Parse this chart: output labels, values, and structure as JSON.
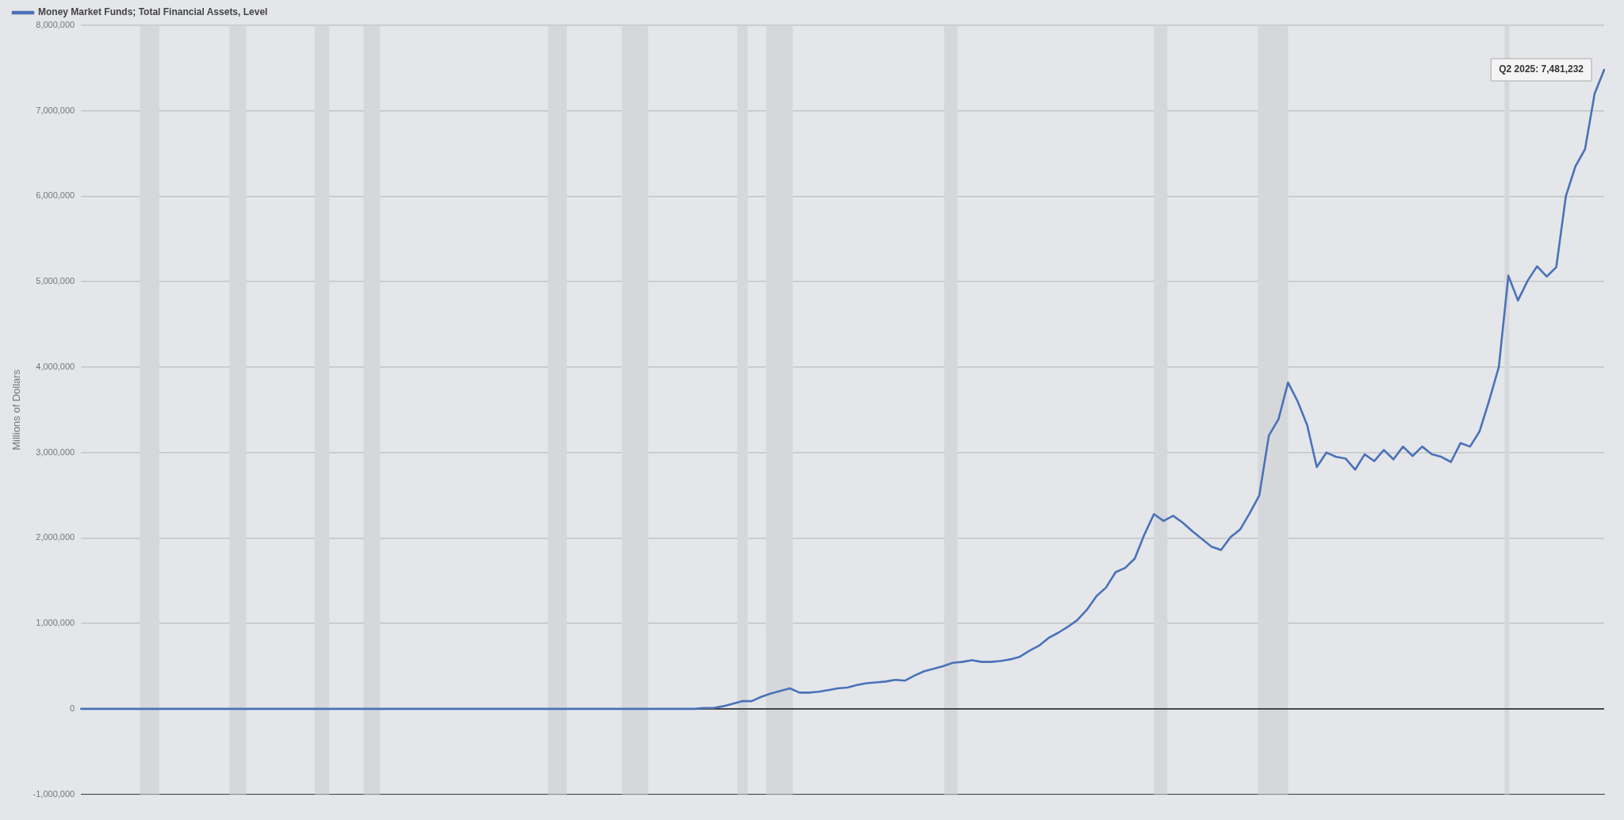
{
  "chart_data": {
    "type": "line",
    "ylabel": "Millions of Dollars",
    "legend": "top left",
    "grid": "y",
    "marker": "none",
    "line_style": "solid",
    "categories": [
      null,
      null,
      null,
      null,
      null,
      null,
      null,
      null,
      null,
      null,
      null,
      null,
      null,
      null,
      null,
      null,
      null,
      null,
      null,
      null,
      null,
      null,
      null,
      null,
      null,
      null,
      null,
      null,
      null,
      null,
      null,
      null,
      null,
      null,
      null,
      null,
      null,
      null,
      null,
      null,
      null,
      null,
      null,
      null,
      null,
      null,
      null,
      null,
      null,
      null,
      null,
      null,
      null,
      null,
      null,
      null,
      null,
      null,
      null,
      null,
      null,
      null,
      null,
      null,
      null,
      null,
      null,
      null,
      null,
      null,
      null,
      null,
      null,
      null,
      null,
      null,
      null,
      null,
      null,
      null,
      null,
      null,
      null,
      null,
      null,
      null,
      null,
      null,
      null,
      null,
      null,
      null,
      null,
      null,
      null,
      null,
      null,
      null,
      null,
      null,
      null,
      null,
      null,
      null,
      null,
      null,
      null,
      null,
      null,
      null,
      null,
      null,
      null,
      null,
      null,
      null,
      null,
      null,
      null,
      null,
      null,
      null,
      null,
      null,
      null,
      null,
      null,
      null,
      null,
      null,
      null,
      null,
      null,
      null,
      null,
      null,
      null,
      null,
      null,
      null,
      null,
      null,
      null,
      null,
      null,
      null,
      null,
      null,
      null,
      null,
      null,
      null,
      null,
      null,
      null,
      null,
      null,
      null,
      null,
      null
    ],
    "ylim": [
      -1000000,
      8000000
    ],
    "yticks": [
      {
        "value": -1000000,
        "label": "-1,000,000"
      },
      0,
      {
        "value": 1000000,
        "label": "1,000,000"
      },
      {
        "value": 2000000,
        "label": "2,000,000"
      },
      {
        "value": 3000000,
        "label": "3,000,000"
      },
      {
        "value": 4000000,
        "label": "4,000,000"
      },
      {
        "value": 5000000,
        "label": "5,000,000"
      },
      {
        "value": 6000000,
        "label": "6,000,000"
      },
      {
        "value": 7000000,
        "label": "7,000,000"
      },
      {
        "value": 8000000,
        "label": "8,000,000"
      }
    ],
    "series": [
      {
        "name": "Money Market Funds; Total Financial Assets, Level",
        "color": "#4a72b8",
        "values": [
          0,
          0,
          0,
          0,
          0,
          0,
          0,
          0,
          0,
          0,
          0,
          0,
          0,
          0,
          0,
          0,
          0,
          0,
          0,
          0,
          0,
          0,
          0,
          0,
          0,
          0,
          0,
          0,
          0,
          0,
          0,
          0,
          0,
          0,
          0,
          0,
          0,
          0,
          0,
          0,
          0,
          0,
          0,
          0,
          0,
          0,
          0,
          0,
          0,
          0,
          0,
          0,
          0,
          0,
          0,
          0,
          0,
          0,
          0,
          0,
          0,
          0,
          0,
          0,
          0,
          10000,
          10000,
          30000,
          60000,
          90000,
          90000,
          140000,
          180000,
          210000,
          240000,
          190000,
          190000,
          200000,
          220000,
          240000,
          250000,
          280000,
          300000,
          310000,
          320000,
          340000,
          330000,
          390000,
          440000,
          470000,
          500000,
          540000,
          550000,
          570000,
          550000,
          550000,
          560000,
          580000,
          610000,
          680000,
          740000,
          830000,
          890000,
          960000,
          1040000,
          1160000,
          1320000,
          1420000,
          1600000,
          1650000,
          1760000,
          2040000,
          2280000,
          2200000,
          2260000,
          2180000,
          2080000,
          1990000,
          1900000,
          1860000,
          2010000,
          2100000,
          2290000,
          2500000,
          3200000,
          3390000,
          3820000,
          3600000,
          3320000,
          2830000,
          3000000,
          2950000,
          2930000,
          2800000,
          2980000,
          2900000,
          3030000,
          2920000,
          3070000,
          2960000,
          3070000,
          2980000,
          2950000,
          2890000,
          3110000,
          3070000,
          3250000,
          3610000,
          4000000,
          5070000,
          4780000,
          5010000,
          5180000,
          5060000,
          5170000,
          6000000,
          6350000,
          6550000,
          7200000,
          7480000
        ]
      }
    ],
    "ref_lines": [
      {
        "axis": "y",
        "value": 0,
        "color": "#333333"
      }
    ],
    "annotations": [
      "Q2 2025: 7,481,232"
    ]
  }
}
